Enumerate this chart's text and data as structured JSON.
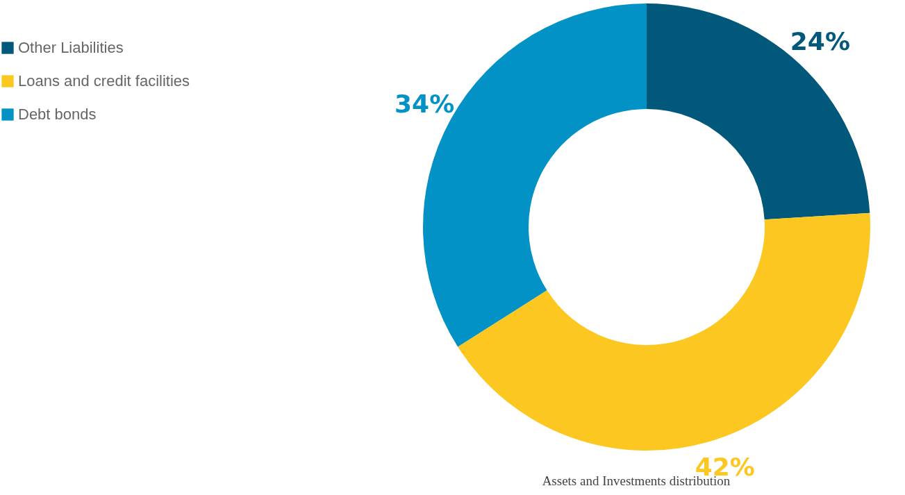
{
  "chart_data": {
    "type": "donut",
    "categories": [
      "Other Liabilities",
      "Loans and credit facilities",
      "Debt bonds"
    ],
    "values": [
      24,
      42,
      34
    ],
    "colors": [
      "#02587a",
      "#fdc722",
      "#0392c6"
    ],
    "value_labels": [
      "24%",
      "42%",
      "34%"
    ],
    "legend": "top left",
    "annotations": [
      "Assets and Investments distribution"
    ]
  }
}
